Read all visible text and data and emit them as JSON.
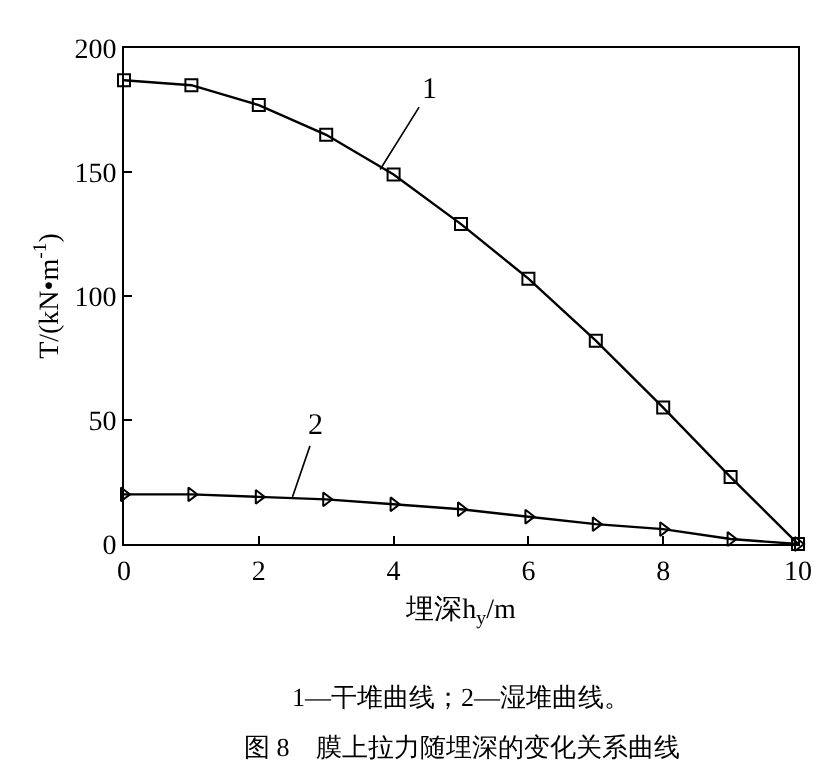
{
  "chart_data": {
    "type": "line",
    "xlabel": "埋深h$_{y}$/m",
    "ylabel": "T/(kN•m$^{-1}$)",
    "x": [
      0,
      1,
      2,
      3,
      4,
      5,
      6,
      7,
      8,
      9,
      10
    ],
    "series": [
      {
        "color": "#000000",
        "marker": "square",
        "values": [
          187,
          185,
          177,
          165,
          149,
          129,
          107,
          82,
          55,
          27,
          0
        ]
      },
      {
        "color": "#000000",
        "marker": "triangle",
        "values": [
          20,
          20,
          19,
          18,
          16,
          14,
          11,
          8,
          6,
          2,
          0
        ]
      }
    ],
    "xlim": [
      0,
      10
    ],
    "ylim": [
      0,
      200
    ],
    "xticks": [
      0,
      2,
      4,
      6,
      8,
      10
    ],
    "yticks": [
      0,
      50,
      100,
      150,
      200
    ],
    "line_style": "solid",
    "annotations": [
      {
        "text": "1",
        "x": 3.8,
        "y": 151
      },
      {
        "text": "2",
        "x": 2.5,
        "y": 19
      },
      "1—干堆曲线；2—湿堆曲线。",
      "图 8　膜上拉力随埋深的变化关系曲线"
    ]
  }
}
